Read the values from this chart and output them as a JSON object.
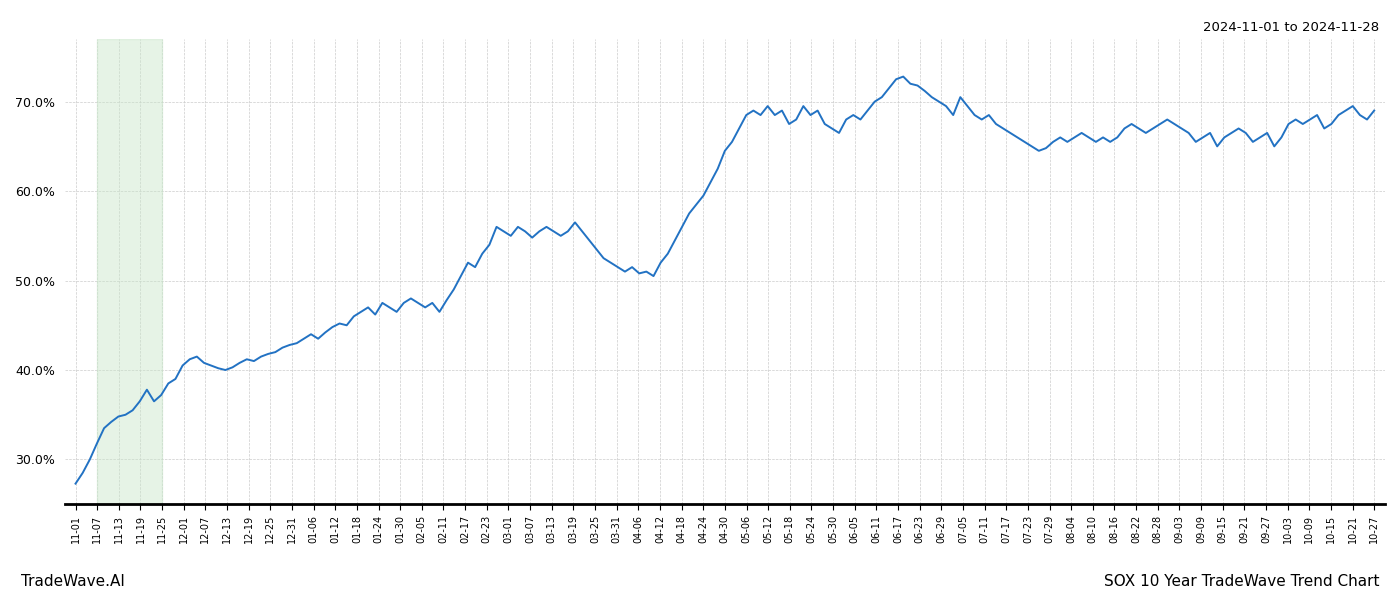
{
  "title_top_right": "2024-11-01 to 2024-11-28",
  "title_bottom_left": "TradeWave.AI",
  "title_bottom_right": "SOX 10 Year TradeWave Trend Chart",
  "line_color": "#2272c3",
  "line_width": 1.4,
  "shade_color": "#c8e6c9",
  "shade_alpha": 0.45,
  "background_color": "#ffffff",
  "grid_color": "#cccccc",
  "ylim_min": 25.0,
  "ylim_max": 77.0,
  "ytick_values": [
    30.0,
    40.0,
    50.0,
    60.0,
    70.0
  ],
  "x_labels": [
    "11-01",
    "11-07",
    "11-13",
    "11-19",
    "11-25",
    "12-01",
    "12-07",
    "12-13",
    "12-19",
    "12-25",
    "12-31",
    "01-06",
    "01-12",
    "01-18",
    "01-24",
    "01-30",
    "02-05",
    "02-11",
    "02-17",
    "02-23",
    "03-01",
    "03-07",
    "03-13",
    "03-19",
    "03-25",
    "03-31",
    "04-06",
    "04-12",
    "04-18",
    "04-24",
    "04-30",
    "05-06",
    "05-12",
    "05-18",
    "05-24",
    "05-30",
    "06-05",
    "06-11",
    "06-17",
    "06-23",
    "06-29",
    "07-05",
    "07-11",
    "07-17",
    "07-23",
    "07-29",
    "08-04",
    "08-10",
    "08-16",
    "08-22",
    "08-28",
    "09-03",
    "09-09",
    "09-15",
    "09-21",
    "09-27",
    "10-03",
    "10-09",
    "10-15",
    "10-21",
    "10-27"
  ],
  "shade_x_start_label": "11-07",
  "shade_x_end_label": "11-25",
  "y_values": [
    27.3,
    28.5,
    30.0,
    31.8,
    33.5,
    34.2,
    34.8,
    35.0,
    35.5,
    36.5,
    37.8,
    36.5,
    37.2,
    38.5,
    39.0,
    40.5,
    41.2,
    41.5,
    40.8,
    40.5,
    40.2,
    40.0,
    40.3,
    40.8,
    41.2,
    41.0,
    41.5,
    41.8,
    42.0,
    42.5,
    42.8,
    43.0,
    43.5,
    44.0,
    43.5,
    44.2,
    44.8,
    45.2,
    45.0,
    46.0,
    46.5,
    47.0,
    46.2,
    47.5,
    47.0,
    46.5,
    47.5,
    48.0,
    47.5,
    47.0,
    47.5,
    46.5,
    47.8,
    49.0,
    50.5,
    52.0,
    51.5,
    53.0,
    54.0,
    56.0,
    55.5,
    55.0,
    56.0,
    55.5,
    54.8,
    55.5,
    56.0,
    55.5,
    55.0,
    55.5,
    56.5,
    55.5,
    54.5,
    53.5,
    52.5,
    52.0,
    51.5,
    51.0,
    51.5,
    50.8,
    51.0,
    50.5,
    52.0,
    53.0,
    54.5,
    56.0,
    57.5,
    58.5,
    59.5,
    61.0,
    62.5,
    64.5,
    65.5,
    67.0,
    68.5,
    69.0,
    68.5,
    69.5,
    68.5,
    69.0,
    67.5,
    68.0,
    69.5,
    68.5,
    69.0,
    67.5,
    67.0,
    66.5,
    68.0,
    68.5,
    68.0,
    69.0,
    70.0,
    70.5,
    71.5,
    72.5,
    72.8,
    72.0,
    71.8,
    71.2,
    70.5,
    70.0,
    69.5,
    68.5,
    70.5,
    69.5,
    68.5,
    68.0,
    68.5,
    67.5,
    67.0,
    66.5,
    66.0,
    65.5,
    65.0,
    64.5,
    64.8,
    65.5,
    66.0,
    65.5,
    66.0,
    66.5,
    66.0,
    65.5,
    66.0,
    65.5,
    66.0,
    67.0,
    67.5,
    67.0,
    66.5,
    67.0,
    67.5,
    68.0,
    67.5,
    67.0,
    66.5,
    65.5,
    66.0,
    66.5,
    65.0,
    66.0,
    66.5,
    67.0,
    66.5,
    65.5,
    66.0,
    66.5,
    65.0,
    66.0,
    67.5,
    68.0,
    67.5,
    68.0,
    68.5,
    67.0,
    67.5,
    68.5,
    69.0,
    69.5,
    68.5,
    68.0,
    69.0
  ]
}
